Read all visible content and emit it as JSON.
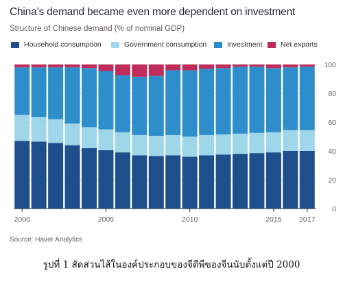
{
  "figure": {
    "title": "China’s demand became even more dependent on investment",
    "subtitle": "Structure of Chinese demand (% of nominal GDP)",
    "source": "Source: Haver Analytics",
    "caption": "รูปที่ 1 สัดส่วนไส้ในองค์ประกอบของจีดีพีของจีนนับตั้งแต่ปี 2000"
  },
  "colors": {
    "household": "#1f4e8c",
    "government": "#9fd6ea",
    "investment": "#2e8ecb",
    "net_exports": "#bf2b5a",
    "gridline": "#e3ddd6",
    "axis_text": "#66605c"
  },
  "chart_data": {
    "type": "bar",
    "stacked": true,
    "categories": [
      "2000",
      "2001",
      "2002",
      "2003",
      "2004",
      "2005",
      "2006",
      "2007",
      "2008",
      "2009",
      "2010",
      "2011",
      "2012",
      "2013",
      "2014",
      "2015",
      "2016",
      "2017"
    ],
    "x_tick_labels": [
      {
        "category": "2000",
        "label": "2000"
      },
      {
        "category": "2005",
        "label": "2005"
      },
      {
        "category": "2010",
        "label": "2010"
      },
      {
        "category": "2015",
        "label": "2015"
      },
      {
        "category": "2017",
        "label": "2017"
      }
    ],
    "y_ticks": [
      0,
      20,
      40,
      60,
      80,
      100
    ],
    "ylim": [
      0,
      100
    ],
    "y_axis_side": "right",
    "grid": true,
    "legend_position": "top",
    "series": [
      {
        "name": "Household consumption",
        "key": "household",
        "values": [
          47,
          46.5,
          45.5,
          44,
          42,
          40.5,
          39,
          37,
          36.5,
          37,
          36,
          37,
          37.5,
          38,
          38.5,
          39,
          40,
          40
        ]
      },
      {
        "name": "Government consumption",
        "key": "government",
        "values": [
          18,
          17,
          16.5,
          15,
          14.5,
          14.5,
          14,
          14,
          14,
          14,
          14,
          14,
          14,
          14,
          14,
          14,
          14.5,
          14.5
        ]
      },
      {
        "name": "Investment",
        "key": "investment",
        "values": [
          33,
          34.5,
          36,
          39,
          41,
          40.5,
          39.5,
          40.5,
          41.5,
          45,
          46,
          46,
          46,
          46.5,
          46,
          44.5,
          43.5,
          44
        ]
      },
      {
        "name": "Net exports",
        "key": "net_exports",
        "values": [
          2,
          2,
          2,
          2,
          2.5,
          4.5,
          7.5,
          8.5,
          8,
          4,
          4,
          3,
          2.5,
          1.5,
          1.5,
          2.5,
          2,
          1.5
        ]
      }
    ]
  }
}
